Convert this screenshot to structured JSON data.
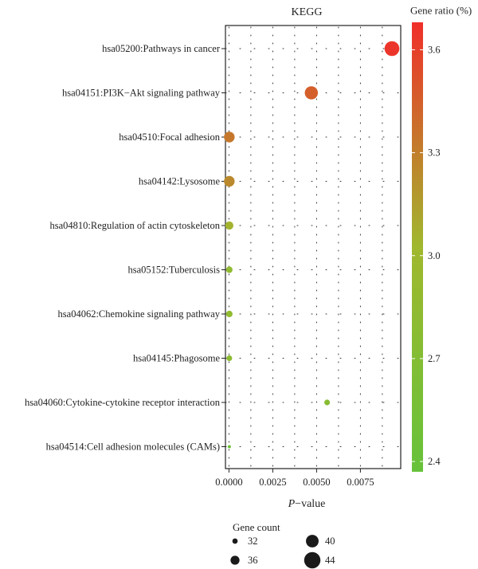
{
  "chart_data": {
    "type": "scatter",
    "title": "KEGG",
    "xlabel": "P−value",
    "xlabel_italic_part": "P",
    "xlabel_rest": "−value",
    "xlim": [
      -0.0002,
      0.0098
    ],
    "x_ticks": [
      0,
      0.0025,
      0.005,
      0.0075
    ],
    "x_tick_labels": [
      "0.0000",
      "0.0025",
      "0.0050",
      "0.0075"
    ],
    "categories": [
      "hsa05200:Pathways in cancer",
      "hsa04151:PI3K−Akt signaling pathway",
      "hsa04510:Focal adhesion",
      "hsa04142:Lysosome",
      "hsa04810:Regulation of actin cytoskeleton",
      "hsa05152:Tuberculosis",
      "hsa04062:Chemokine signaling pathway",
      "hsa04145:Phagosome",
      "hsa04060:Cytokine-cytokine receptor interaction",
      "hsa04514:Cell adhesion molecules (CAMs)"
    ],
    "points": [
      {
        "category": "hsa05200:Pathways in cancer",
        "p_value": 0.0093,
        "gene_ratio": 3.65,
        "gene_count": 44
      },
      {
        "category": "hsa04151:PI3K−Akt signaling pathway",
        "p_value": 0.0047,
        "gene_ratio": 3.45,
        "gene_count": 42
      },
      {
        "category": "hsa04510:Focal adhesion",
        "p_value": 2e-05,
        "gene_ratio": 3.33,
        "gene_count": 39
      },
      {
        "category": "hsa04142:Lysosome",
        "p_value": 2e-05,
        "gene_ratio": 3.25,
        "gene_count": 39
      },
      {
        "category": "hsa04810:Regulation of actin cytoskeleton",
        "p_value": 2e-05,
        "gene_ratio": 3.05,
        "gene_count": 36
      },
      {
        "category": "hsa05152:Tuberculosis",
        "p_value": 2e-05,
        "gene_ratio": 2.85,
        "gene_count": 34
      },
      {
        "category": "hsa04062:Chemokine signaling pathway",
        "p_value": 2e-05,
        "gene_ratio": 2.85,
        "gene_count": 34
      },
      {
        "category": "hsa04145:Phagosome",
        "p_value": 2e-05,
        "gene_ratio": 2.8,
        "gene_count": 33
      },
      {
        "category": "hsa04060:Cytokine-cytokine receptor interaction",
        "p_value": 0.0056,
        "gene_ratio": 2.75,
        "gene_count": 33
      },
      {
        "category": "hsa04514:Cell adhesion molecules (CAMs)",
        "p_value": 2e-05,
        "gene_ratio": 2.4,
        "gene_count": 30
      }
    ],
    "color_legend": {
      "title": "Gene ratio (%)",
      "range": [
        2.37,
        3.68
      ],
      "ticks": [
        3.6,
        3.3,
        3.0,
        2.7,
        2.4
      ],
      "tick_labels": [
        "3.6",
        "3.3",
        "3.0",
        "2.7",
        "2.4"
      ],
      "low_color": "#66c23a",
      "mid_color": "#a0b82e",
      "high_color": "#f02f2a"
    },
    "size_legend": {
      "title": "Gene count",
      "entries": [
        {
          "value": 32,
          "label": "32"
        },
        {
          "value": 36,
          "label": "36"
        },
        {
          "value": 40,
          "label": "40"
        },
        {
          "value": 44,
          "label": "44"
        }
      ]
    },
    "grid": "dotted",
    "legend_placement": "right and bottom"
  }
}
